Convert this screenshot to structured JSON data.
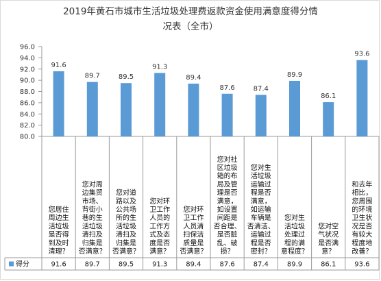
{
  "chart_data": {
    "type": "bar",
    "title_lines": [
      "2019年黄石市城市生活垃圾处理费返款资金使用满意度得分情",
      "况表（全市）"
    ],
    "ylim": [
      80.0,
      96.0
    ],
    "y_ticks": [
      "80.0",
      "82.0",
      "84.0",
      "86.0",
      "88.0",
      "90.0",
      "92.0",
      "94.0",
      "96.0"
    ],
    "grid": false,
    "legend_position": "bottom-left",
    "series": [
      {
        "name": "得分",
        "color": "#5b9bd5",
        "values": [
          91.6,
          89.7,
          89.5,
          91.3,
          89.4,
          87.6,
          87.4,
          89.9,
          86.1,
          93.6
        ]
      }
    ],
    "value_labels": [
      "91.6",
      "89.7",
      "89.5",
      "91.3",
      "89.4",
      "87.6",
      "87.4",
      "89.9",
      "86.1",
      "93.6"
    ],
    "categories": [
      [
        "您居住",
        "周边生",
        "活垃圾",
        "是否得",
        "到及时",
        "清理？"
      ],
      [
        "您对周",
        "边集贸",
        "市场、",
        "背街小",
        "巷的生",
        "活垃圾",
        "清扫及",
        "归集是",
        "否满意？"
      ],
      [
        "您对道",
        "路以及",
        "公共场",
        "所的生",
        "活垃圾",
        "清扫及",
        "归集是",
        "否满意？"
      ],
      [
        "您对环",
        "卫工作",
        "人员的",
        "工作方",
        "式及态",
        "度是否",
        "满意？"
      ],
      [
        "您对环",
        "卫工作",
        "人员清",
        "扫保洁",
        "质量是",
        "否满意？"
      ],
      [
        "您对社",
        "区垃圾",
        "箱的布",
        "局及管",
        "理是否",
        "满意，",
        "如设置",
        "间距是",
        "否合理、",
        "是否脏",
        "乱、破",
        "损？"
      ],
      [
        "您对生",
        "活垃圾",
        "运输过",
        "程是否",
        "满意，",
        "如运输",
        "车辆是",
        "否清洁、",
        "运输过",
        "程是否",
        "密封？"
      ],
      [
        "您对生",
        "活垃圾",
        "处理过",
        "程的满",
        "意程度？"
      ],
      [
        "您对空",
        "气状况",
        "是否满",
        "意？"
      ],
      [
        "和去年",
        "相比，",
        "您周围",
        "的环境",
        "卫生状",
        "况是否",
        "有较大",
        "程度地",
        "改善？"
      ]
    ]
  }
}
